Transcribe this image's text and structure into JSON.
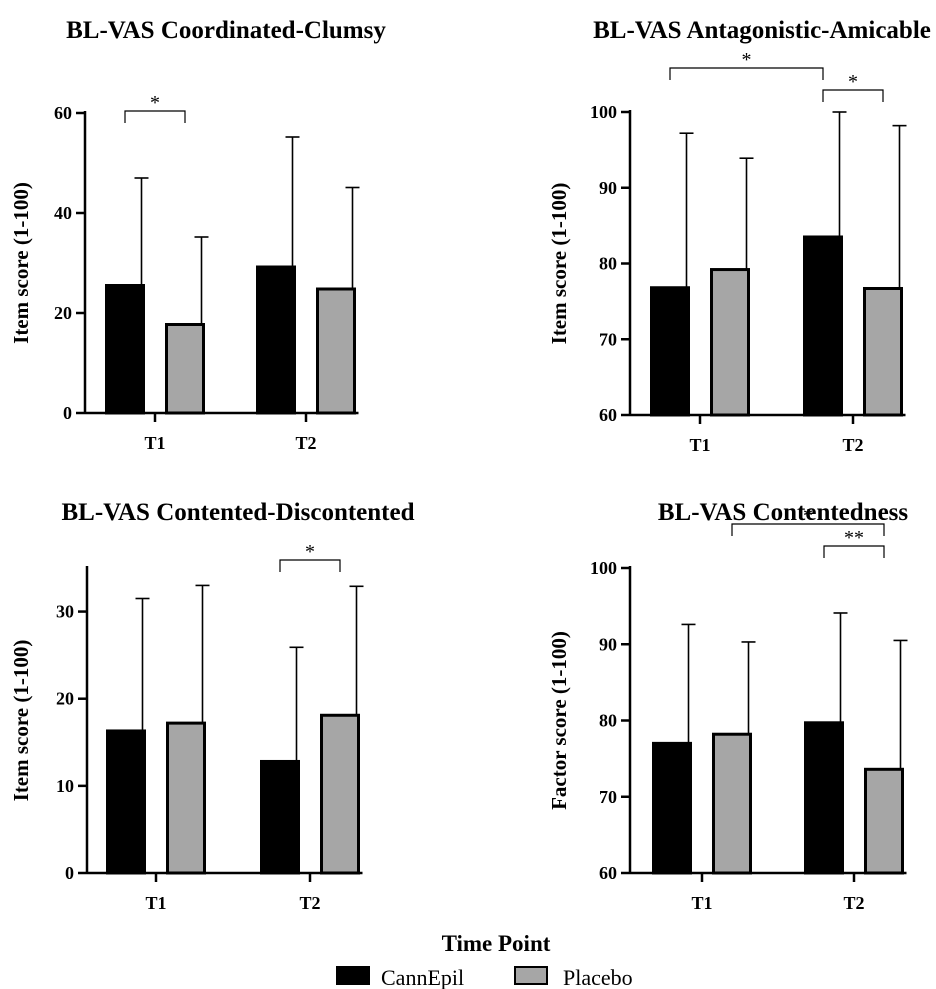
{
  "colors": {
    "CannEpil": "#000000",
    "Placebo": "#a6a6a6",
    "axis": "#000000"
  },
  "shared_xlabel": "Time Point",
  "legend": [
    {
      "label": "CannEpil",
      "color": "#000000"
    },
    {
      "label": "Placebo",
      "color": "#a6a6a6"
    }
  ],
  "chart_data": [
    {
      "type": "bar",
      "title": "BL-VAS Coordinated-Clumsy",
      "ylabel": "Item score (1-100)",
      "categories": [
        "T1",
        "T2"
      ],
      "ylim": [
        0,
        60
      ],
      "yticks": [
        "0",
        "20",
        "40",
        "60"
      ],
      "series": [
        {
          "name": "CannEpil",
          "values": [
            25.5,
            29.2
          ],
          "errors": [
            21.5,
            26.0
          ]
        },
        {
          "name": "Placebo",
          "values": [
            17.7,
            24.8
          ],
          "errors": [
            17.5,
            20.3
          ]
        }
      ],
      "significance": [
        {
          "from": [
            0,
            0
          ],
          "to": [
            0,
            1
          ],
          "label": "*"
        }
      ]
    },
    {
      "type": "bar",
      "title": "BL-VAS Antagonistic-Amicable",
      "ylabel": "Item score (1-100)",
      "categories": [
        "T1",
        "T2"
      ],
      "ylim": [
        60,
        100
      ],
      "yticks": [
        "60",
        "70",
        "80",
        "90",
        "100"
      ],
      "series": [
        {
          "name": "CannEpil",
          "values": [
            76.8,
            83.5
          ],
          "errors": [
            20.4,
            16.5
          ]
        },
        {
          "name": "Placebo",
          "values": [
            79.2,
            76.7
          ],
          "errors": [
            14.7,
            21.5
          ]
        }
      ],
      "significance": [
        {
          "from": [
            0,
            0
          ],
          "to": [
            1,
            0
          ],
          "label": "*"
        },
        {
          "from": [
            1,
            0
          ],
          "to": [
            1,
            1
          ],
          "label": "*"
        }
      ]
    },
    {
      "type": "bar",
      "title": "BL-VAS Contented-Discontented",
      "ylabel": "Item score (1-100)",
      "categories": [
        "T1",
        "T2"
      ],
      "ylim": [
        0,
        35
      ],
      "yticks": [
        "0",
        "10",
        "20",
        "30"
      ],
      "series": [
        {
          "name": "CannEpil",
          "values": [
            16.3,
            12.8
          ],
          "errors": [
            15.2,
            13.1
          ]
        },
        {
          "name": "Placebo",
          "values": [
            17.2,
            18.1
          ],
          "errors": [
            15.8,
            14.8
          ]
        }
      ],
      "significance": [
        {
          "from": [
            1,
            0
          ],
          "to": [
            1,
            1
          ],
          "label": "*"
        }
      ]
    },
    {
      "type": "bar",
      "title": "BL-VAS Contentedness",
      "ylabel": "Factor score (1-100)",
      "categories": [
        "T1",
        "T2"
      ],
      "ylim": [
        60,
        100
      ],
      "yticks": [
        "60",
        "70",
        "80",
        "90",
        "100"
      ],
      "series": [
        {
          "name": "CannEpil",
          "values": [
            77.0,
            79.7
          ],
          "errors": [
            15.6,
            14.4
          ]
        },
        {
          "name": "Placebo",
          "values": [
            78.2,
            73.6
          ],
          "errors": [
            12.1,
            16.9
          ]
        }
      ],
      "significance": [
        {
          "from": [
            0,
            1
          ],
          "to": [
            1,
            1
          ],
          "label": "*"
        },
        {
          "from": [
            1,
            0
          ],
          "to": [
            1,
            1
          ],
          "label": "**"
        }
      ]
    }
  ]
}
